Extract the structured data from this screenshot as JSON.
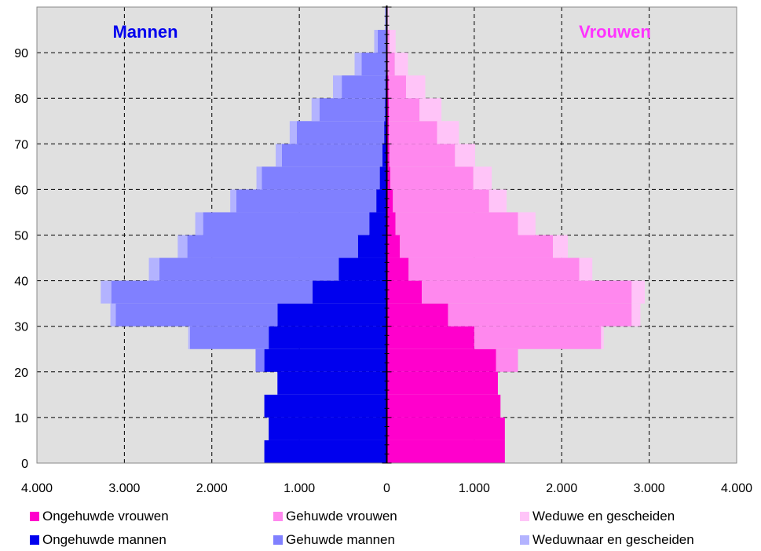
{
  "chart_data": {
    "type": "bar",
    "subtype": "population-pyramid",
    "orientation": "horizontal",
    "side_labels": {
      "left": "Mannen",
      "right": "Vrouwen"
    },
    "colors": {
      "left_title": "#0000ee",
      "right_title": "#ff33ff",
      "plot_background": "#e0e0e0",
      "grid": "#000000"
    },
    "x_ticks": [
      "4.000",
      "3.000",
      "2.000",
      "1.000",
      "0",
      "1.000",
      "2.000",
      "3.000",
      "4.000"
    ],
    "xlim": [
      -4000,
      4000
    ],
    "ylim": [
      0,
      100
    ],
    "y_ticks": [
      "0",
      "10",
      "20",
      "30",
      "40",
      "50",
      "60",
      "70",
      "80",
      "90"
    ],
    "y_tick_values": [
      0,
      10,
      20,
      30,
      40,
      50,
      60,
      70,
      80,
      90
    ],
    "age_groups": [
      0,
      5,
      10,
      15,
      20,
      25,
      30,
      35,
      40,
      45,
      50,
      55,
      60,
      65,
      70,
      75,
      80,
      85,
      90,
      95
    ],
    "series": [
      {
        "name": "Ongehuwde mannen",
        "side": "left",
        "color": "#0000ee",
        "values": [
          1400,
          1350,
          1400,
          1250,
          1400,
          1350,
          1250,
          850,
          550,
          330,
          200,
          120,
          80,
          50,
          30,
          20,
          15,
          8,
          4,
          1
        ]
      },
      {
        "name": "Gehuwde mannen",
        "side": "left",
        "color": "#8080ff",
        "values": [
          0,
          0,
          0,
          0,
          100,
          900,
          1850,
          2300,
          2050,
          1950,
          1900,
          1600,
          1350,
          1150,
          1000,
          750,
          500,
          280,
          100,
          15
        ]
      },
      {
        "name": "Weduwnaar en gescheiden",
        "side": "left",
        "color": "#b3b3ff",
        "values": [
          0,
          0,
          0,
          0,
          0,
          20,
          60,
          120,
          120,
          110,
          90,
          70,
          60,
          70,
          80,
          90,
          100,
          80,
          40,
          6
        ]
      },
      {
        "name": "Ongehuwde vrouwen",
        "side": "right",
        "color": "#ff00cc",
        "values": [
          1350,
          1350,
          1300,
          1270,
          1250,
          1000,
          700,
          400,
          250,
          150,
          100,
          70,
          40,
          30,
          25,
          25,
          20,
          12,
          6,
          2
        ]
      },
      {
        "name": "Gehuwde vrouwen",
        "side": "right",
        "color": "#ff88ee",
        "values": [
          0,
          0,
          0,
          0,
          250,
          1450,
          2100,
          2400,
          1950,
          1750,
          1400,
          1100,
          950,
          750,
          550,
          350,
          200,
          80,
          25,
          4
        ]
      },
      {
        "name": "Weduwe en gescheiden",
        "side": "right",
        "color": "#ffc4f8",
        "values": [
          0,
          0,
          0,
          0,
          0,
          30,
          100,
          150,
          150,
          170,
          200,
          200,
          210,
          230,
          250,
          250,
          220,
          150,
          70,
          15
        ]
      }
    ],
    "grid": true,
    "legend_position": "bottom"
  },
  "legend": {
    "items": [
      {
        "label": "Ongehuwde vrouwen",
        "color": "#ff00cc"
      },
      {
        "label": "Gehuwde vrouwen",
        "color": "#ff88ee"
      },
      {
        "label": "Weduwe en gescheiden",
        "color": "#ffc4f8"
      },
      {
        "label": "Ongehuwde mannen",
        "color": "#0000ee"
      },
      {
        "label": "Gehuwde mannen",
        "color": "#8080ff"
      },
      {
        "label": "Weduwnaar en gescheiden",
        "color": "#b3b3ff"
      }
    ]
  }
}
